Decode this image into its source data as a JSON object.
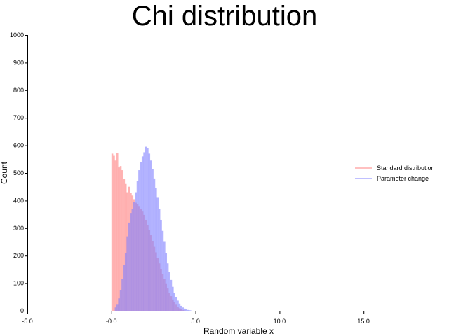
{
  "chart_data": {
    "type": "bar",
    "title": "Chi distribution",
    "xlabel": "Random variable x",
    "ylabel": "Count",
    "xlim": [
      -5,
      20
    ],
    "ylim": [
      0,
      1000
    ],
    "x_ticks": [
      "-5.0",
      "-0.0",
      "5.0",
      "10.0",
      "15.0"
    ],
    "y_ticks": [
      "0",
      "100",
      "200",
      "300",
      "400",
      "500",
      "600",
      "700",
      "800",
      "900",
      "1000"
    ],
    "grid": false,
    "legend_position": "right",
    "series": [
      {
        "name": "Standard distribution",
        "color": "#ff8080",
        "opacity": 0.6,
        "bin_start": 0.0,
        "bin_width": 0.1,
        "values": [
          570,
          562,
          545,
          572,
          520,
          525,
          510,
          478,
          460,
          430,
          450,
          428,
          418,
          405,
          392,
          388,
          380,
          370,
          360,
          348,
          330,
          310,
          292,
          274,
          252,
          232,
          212,
          192,
          172,
          152,
          133,
          115,
          97,
          81,
          66,
          53,
          41,
          31,
          22,
          15,
          9,
          5,
          2,
          1
        ]
      },
      {
        "name": "Parameter change",
        "color": "#8080ff",
        "opacity": 0.6,
        "bin_start": 0.2,
        "bin_width": 0.1,
        "values": [
          12,
          22,
          45,
          75,
          115,
          165,
          210,
          270,
          320,
          355,
          370,
          395,
          430,
          470,
          510,
          540,
          560,
          575,
          595,
          590,
          570,
          545,
          515,
          480,
          445,
          410,
          370,
          330,
          290,
          250,
          210,
          172,
          140,
          112,
          87,
          66,
          50,
          37,
          26,
          18,
          12,
          8,
          5,
          3,
          2,
          1
        ]
      }
    ]
  }
}
